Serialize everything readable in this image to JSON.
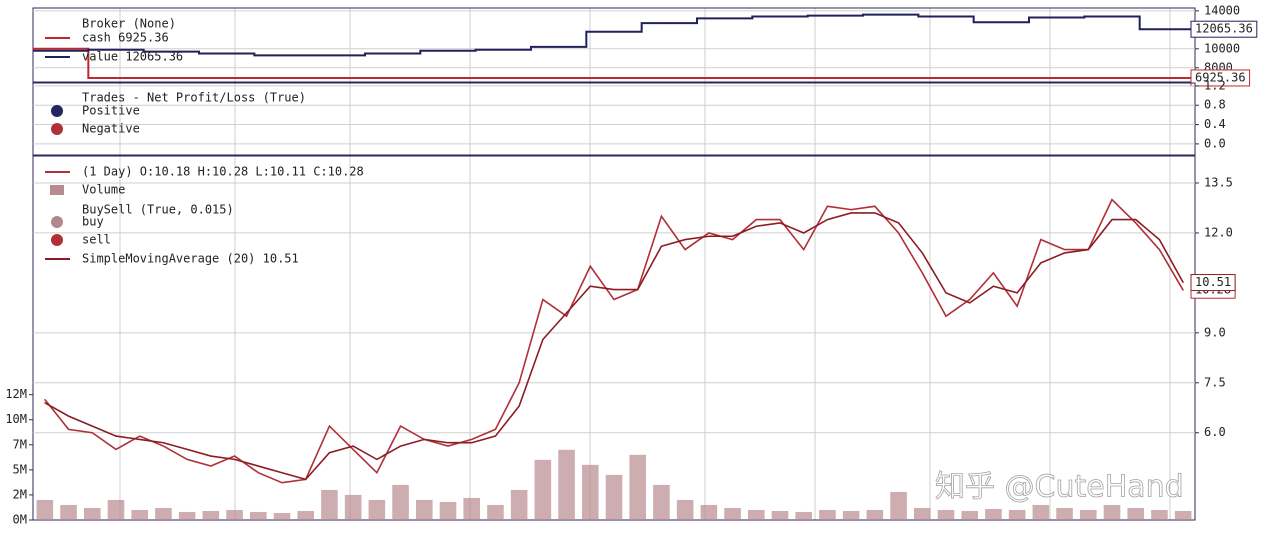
{
  "chart_data": [
    {
      "type": "line",
      "title": "Broker (None)",
      "series": [
        {
          "name": "cash 6925.36",
          "color": "#c0282d",
          "values": [
            10000,
            6925.36,
            6925.36,
            6925.36,
            6925.36,
            6925.36,
            6925.36,
            6925.36,
            6925.36,
            6925.36,
            6925.36,
            6925.36,
            6925.36,
            6925.36,
            6925.36,
            6925.36,
            6925.36,
            6925.36,
            6925.36,
            6925.36,
            6925.36
          ]
        },
        {
          "name": "value 12065.36",
          "color": "#20205a",
          "values": [
            9800,
            9900,
            9700,
            9500,
            9300,
            9300,
            9500,
            9800,
            9900,
            10200,
            11800,
            12700,
            13200,
            13400,
            13500,
            13600,
            13400,
            12800,
            13300,
            13400,
            12065.36
          ]
        }
      ],
      "ylim": [
        6500,
        14300
      ],
      "yticks": [
        8000,
        10000,
        14000
      ]
    },
    {
      "type": "scatter",
      "title": "Trades - Net Profit/Loss (True)",
      "series": [
        {
          "name": "Positive",
          "color": "#252560",
          "values": []
        },
        {
          "name": "Negative",
          "color": "#b03038",
          "values": []
        }
      ],
      "ylim": [
        -0.23,
        1.26
      ],
      "yticks": [
        {
          "value": 0,
          "label": "0.0"
        },
        0.4,
        0.8,
        1.2
      ]
    },
    {
      "type": "line",
      "title": "BuySell (True, 0.015)",
      "series": [
        {
          "name": "(1 Day) O:10.18 H:10.28 L:10.11 C:10.28",
          "color": "#b03038",
          "values": [
            7.0,
            6.1,
            6.0,
            5.5,
            5.9,
            5.6,
            5.2,
            5.0,
            5.3,
            4.8,
            4.5,
            4.6,
            6.2,
            5.5,
            4.8,
            6.2,
            5.8,
            5.6,
            5.8,
            6.1,
            7.5,
            10.0,
            9.5,
            11.0,
            10.0,
            10.3,
            12.5,
            11.5,
            12.0,
            11.8,
            12.4,
            12.4,
            11.5,
            12.8,
            12.7,
            12.8,
            12.0,
            10.8,
            9.5,
            10.0,
            10.8,
            9.8,
            11.8,
            11.5,
            11.5,
            13.0,
            12.3,
            11.5,
            10.28
          ]
        },
        {
          "name": "Volume",
          "type": "bar",
          "axis": "y2",
          "color": "#b98a8e",
          "values": [
            2000000,
            1500000,
            1200000,
            2000000,
            1000000,
            1200000,
            800000,
            900000,
            1000000,
            800000,
            700000,
            900000,
            3000000,
            2500000,
            2000000,
            3500000,
            2000000,
            1800000,
            2200000,
            1500000,
            3000000,
            6000000,
            7000000,
            5500000,
            4500000,
            6500000,
            3500000,
            2000000,
            1500000,
            1200000,
            1000000,
            900000,
            800000,
            1000000,
            900000,
            1000000,
            2800000,
            1200000,
            1000000,
            900000,
            1100000,
            1000000,
            1500000,
            1200000,
            1000000,
            1500000,
            1200000,
            1000000,
            900000
          ]
        },
        {
          "name": "buy",
          "type": "scatter",
          "color": "#b08890",
          "values": []
        },
        {
          "name": "sell",
          "type": "scatter",
          "color": "#b03038",
          "values": []
        },
        {
          "name": "SimpleMovingAverage (20) 10.51",
          "color": "#8c1c24",
          "values": [
            6.9,
            6.5,
            6.2,
            5.9,
            5.8,
            5.7,
            5.5,
            5.3,
            5.2,
            5.0,
            4.8,
            4.6,
            5.4,
            5.6,
            5.2,
            5.6,
            5.8,
            5.7,
            5.7,
            5.9,
            6.8,
            8.8,
            9.6,
            10.4,
            10.3,
            10.3,
            11.6,
            11.8,
            11.9,
            11.9,
            12.2,
            12.3,
            12.0,
            12.4,
            12.6,
            12.6,
            12.3,
            11.4,
            10.2,
            9.9,
            10.4,
            10.2,
            11.1,
            11.4,
            11.5,
            12.4,
            12.4,
            11.8,
            10.51
          ]
        }
      ],
      "ylim": [
        3.38,
        14.31
      ],
      "yticks": [
        13.5,
        {
          "value": 12,
          "label": "12.0"
        },
        {
          "value": 9,
          "label": "9.0"
        },
        7.5,
        {
          "value": 6,
          "label": "6.0"
        }
      ],
      "y2lim": [
        0,
        36300000
      ],
      "y2ticks": [
        {
          "value": 0,
          "label": "0M"
        },
        {
          "value": 2500000,
          "label": "2M"
        },
        {
          "value": 5000000,
          "label": "5M"
        },
        {
          "value": 7500000,
          "label": "7M"
        },
        {
          "value": 10000000,
          "label": "10M"
        },
        {
          "value": 12500000,
          "label": "12M"
        }
      ]
    }
  ],
  "watermark": "知乎 @CuteHand"
}
